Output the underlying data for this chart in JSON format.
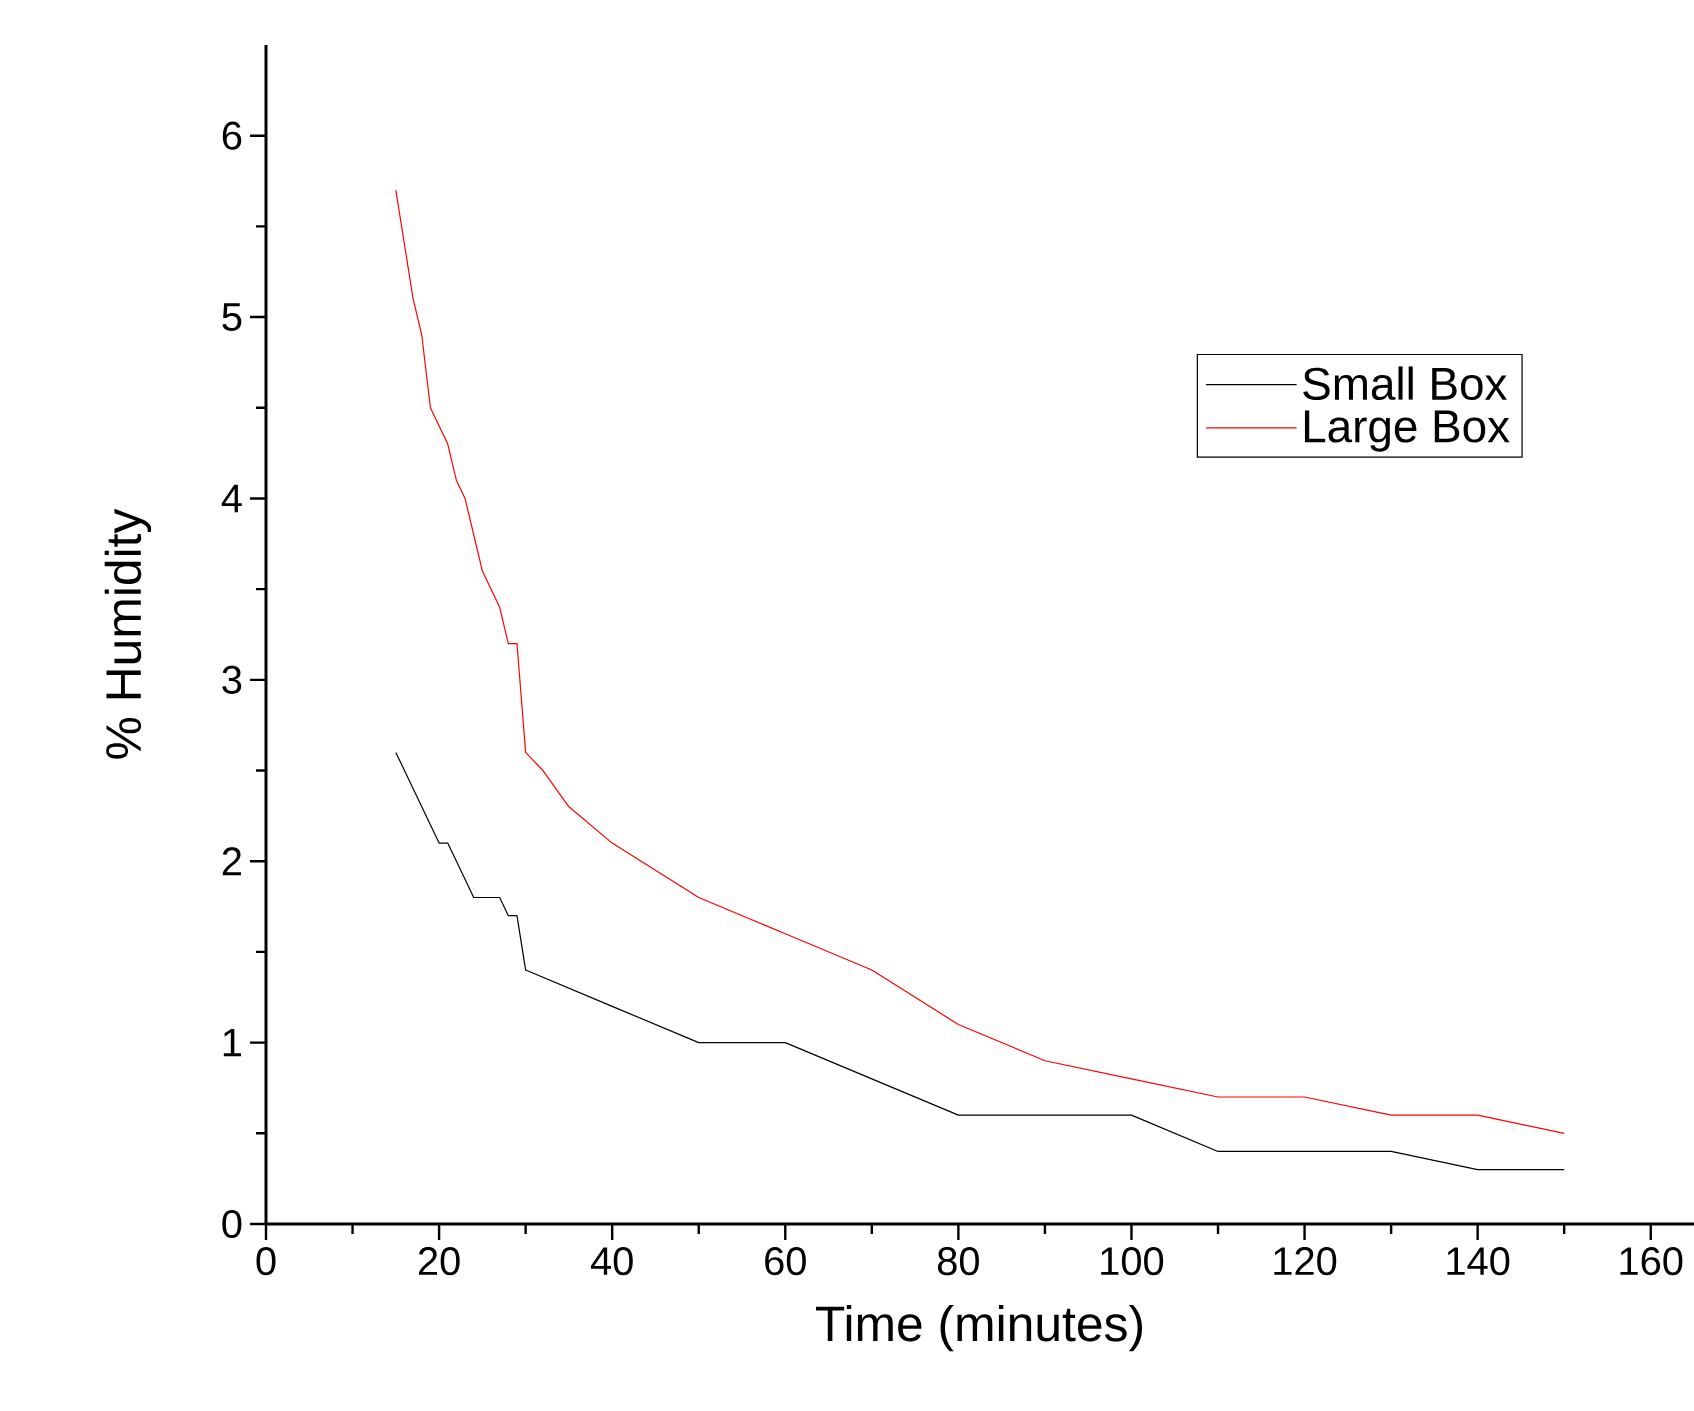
{
  "chart_data": {
    "type": "line",
    "xlabel": "Time (minutes)",
    "ylabel": "% Humidity",
    "xlim": [
      0,
      165
    ],
    "ylim": [
      0,
      6.5
    ],
    "xticks": [
      0,
      20,
      40,
      60,
      80,
      100,
      120,
      140,
      160
    ],
    "yticks": [
      0,
      1,
      2,
      3,
      4,
      5,
      6
    ],
    "grid": false,
    "legend": "right",
    "marker": "none",
    "line_style": "solid",
    "series": [
      {
        "name": "Small Box",
        "color": "#000000",
        "x": [
          15,
          20,
          21,
          24,
          27,
          28,
          29,
          30,
          40,
          50,
          60,
          70,
          80,
          90,
          100,
          110,
          120,
          130,
          140,
          150
        ],
        "values": [
          2.6,
          2.1,
          2.1,
          1.8,
          1.8,
          1.7,
          1.7,
          1.4,
          1.2,
          1.0,
          1.0,
          0.8,
          0.6,
          0.6,
          0.6,
          0.4,
          0.4,
          0.4,
          0.3,
          0.3
        ]
      },
      {
        "name": "Large Box",
        "color": "#ff0000",
        "x": [
          15,
          17,
          18,
          19,
          21,
          22,
          23,
          25,
          27,
          28,
          29,
          30,
          32,
          35,
          40,
          50,
          60,
          70,
          80,
          90,
          100,
          110,
          120,
          130,
          140,
          150
        ],
        "values": [
          5.7,
          5.1,
          4.9,
          4.5,
          4.3,
          4.1,
          4.0,
          3.6,
          3.4,
          3.2,
          3.2,
          2.6,
          2.5,
          2.3,
          2.1,
          1.8,
          1.6,
          1.4,
          1.1,
          0.9,
          0.8,
          0.7,
          0.7,
          0.6,
          0.6,
          0.5
        ]
      }
    ]
  }
}
